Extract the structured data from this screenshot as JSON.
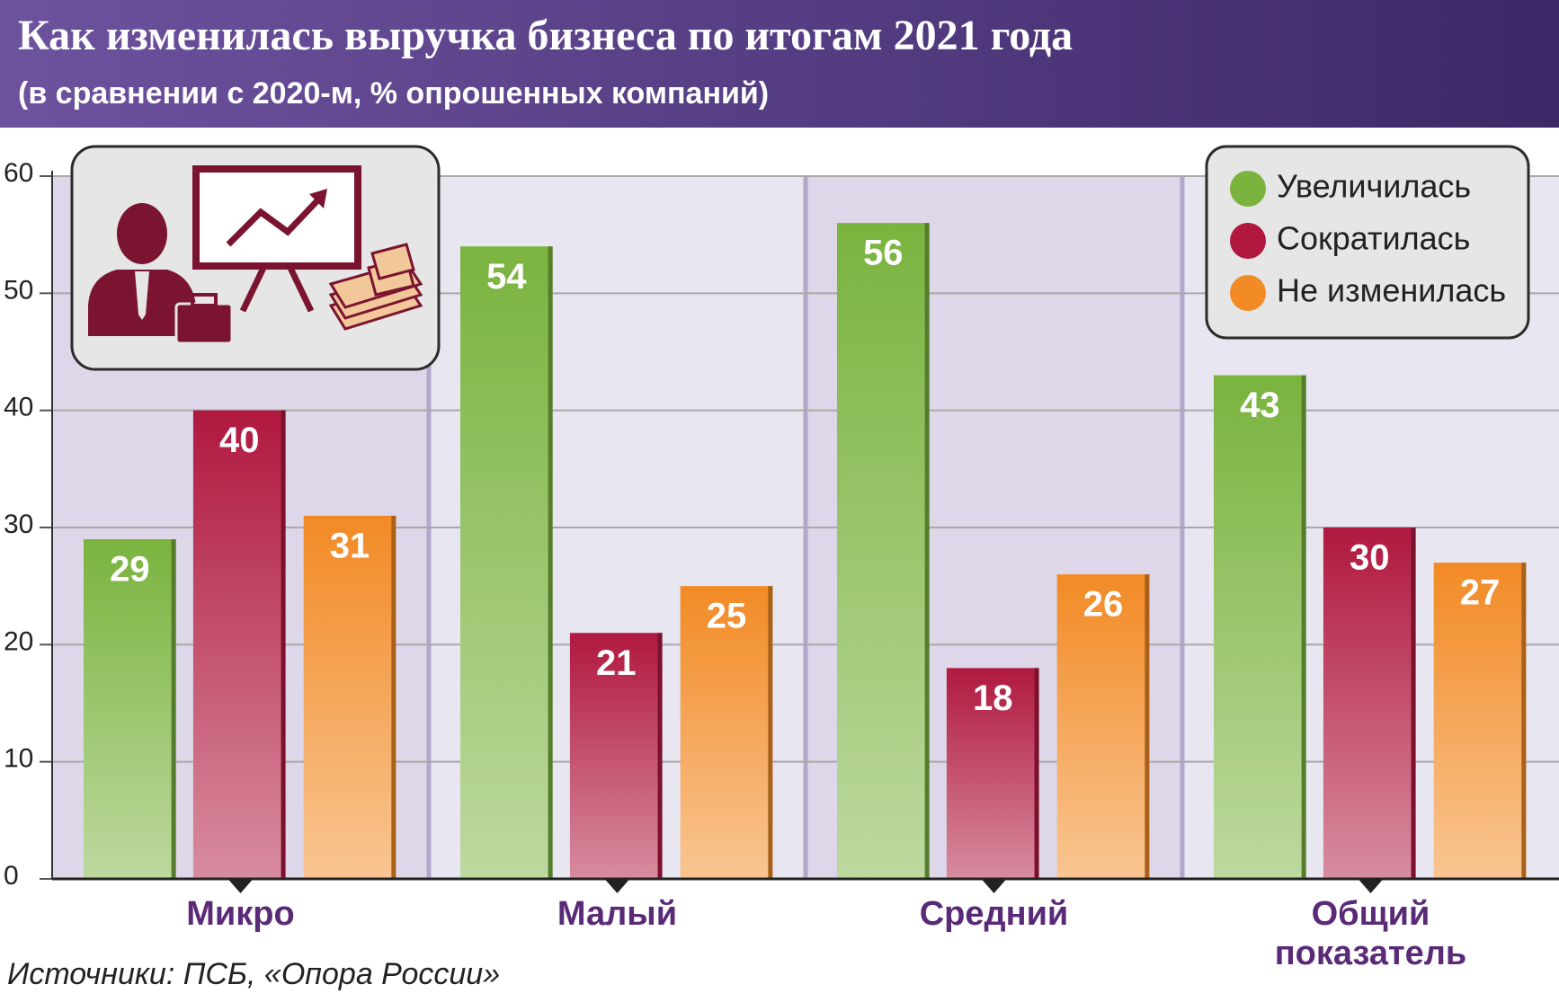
{
  "chart_data": {
    "type": "bar",
    "title": "Как изменилась выручка бизнеса по итогам 2021 года",
    "subtitle": "(в сравнении с 2020-м, % опрошенных компаний)",
    "categories": [
      "Микро",
      "Малый",
      "Средний",
      "Общий показатель"
    ],
    "series": [
      {
        "name": "Увеличилась",
        "color": "#7ab33e",
        "values": [
          29,
          54,
          56,
          43
        ]
      },
      {
        "name": "Сократилась",
        "color": "#b0183f",
        "values": [
          40,
          21,
          18,
          30
        ]
      },
      {
        "name": "Не изменилась",
        "color": "#f28a25",
        "values": [
          31,
          25,
          26,
          27
        ]
      }
    ],
    "ylim": [
      0,
      60
    ],
    "yticks": [
      0,
      10,
      20,
      30,
      40,
      50,
      60
    ],
    "grid": true,
    "legend": "top-right",
    "source": "Источники: ПСБ, «Опора России»"
  }
}
